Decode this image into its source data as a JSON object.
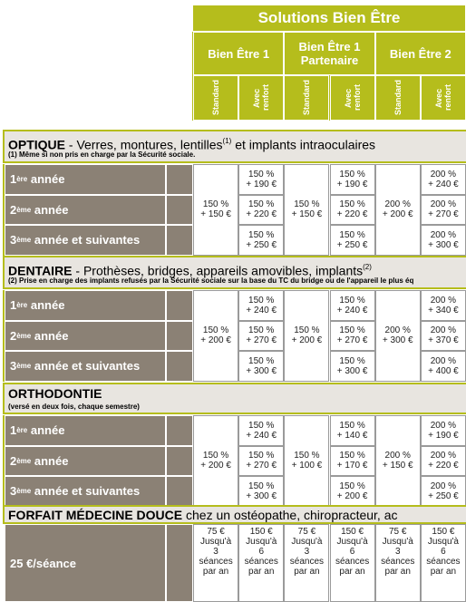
{
  "header": {
    "title": "Solutions Bien Être",
    "groups": [
      {
        "name": "Bien Être 1",
        "subs": [
          "Standard",
          "Avec renfort"
        ]
      },
      {
        "name": "Bien Être 1 Partenaire",
        "subs": [
          "Standard",
          "Avec renfort"
        ]
      },
      {
        "name": "Bien Être 2",
        "subs": [
          "Standard",
          "Avec renfort"
        ]
      }
    ]
  },
  "sections": [
    {
      "title": "OPTIQUE",
      "title_rest": " - Verres, montures, lentilles",
      "title_sup": "(1)",
      "title_end": " et implants intraoculaires",
      "note": "(1) Même si non pris en charge par la Sécurité sociale.",
      "rows": [
        {
          "num": "1",
          "sup": "ère",
          "text": " année"
        },
        {
          "num": "2",
          "sup": "ème",
          "text": " année"
        },
        {
          "num": "3",
          "sup": "ème",
          "text": " année et suivantes"
        }
      ],
      "standard": [
        [
          "150 %",
          "+ 150 €"
        ],
        [
          "150 %",
          "+ 150 €"
        ],
        [
          "200 %",
          "+ 200 €"
        ]
      ],
      "renfort": [
        [
          [
            "150 %",
            "+ 190 €"
          ],
          [
            "150 %",
            "+ 190 €"
          ],
          [
            "200 %",
            "+ 240 €"
          ]
        ],
        [
          [
            "150 %",
            "+ 220 €"
          ],
          [
            "150 %",
            "+ 220 €"
          ],
          [
            "200 %",
            "+ 270 €"
          ]
        ],
        [
          [
            "150 %",
            "+ 250 €"
          ],
          [
            "150 %",
            "+ 250 €"
          ],
          [
            "200 %",
            "+ 300 €"
          ]
        ]
      ]
    },
    {
      "title": "DENTAIRE",
      "title_rest": " - Prothèses, bridges, appareils amovibles, implants",
      "title_sup": "(2)",
      "title_end": "",
      "note": "(2) Prise en charge des implants refusés par la Sécurité sociale sur la base du TC du bridge ou de l'appareil le plus éq",
      "rows": [
        {
          "num": "1",
          "sup": "ère",
          "text": " année"
        },
        {
          "num": "2",
          "sup": "ème",
          "text": " année"
        },
        {
          "num": "3",
          "sup": "ème",
          "text": " année et suivantes"
        }
      ],
      "standard": [
        [
          "150 %",
          "+ 200 €"
        ],
        [
          "150 %",
          "+ 200 €"
        ],
        [
          "200 %",
          "+ 300 €"
        ]
      ],
      "renfort": [
        [
          [
            "150 %",
            "+ 240 €"
          ],
          [
            "150 %",
            "+ 240 €"
          ],
          [
            "200 %",
            "+ 340 €"
          ]
        ],
        [
          [
            "150 %",
            "+ 270 €"
          ],
          [
            "150 %",
            "+ 270 €"
          ],
          [
            "200 %",
            "+ 370 €"
          ]
        ],
        [
          [
            "150 %",
            "+ 300 €"
          ],
          [
            "150 %",
            "+ 300 €"
          ],
          [
            "200 %",
            "+ 400 €"
          ]
        ]
      ]
    },
    {
      "title": "ORTHODONTIE",
      "title_rest": "",
      "title_sup": "",
      "title_end": "",
      "note": "(versé en deux fois, chaque semestre)",
      "rows": [
        {
          "num": "1",
          "sup": "ère",
          "text": " année"
        },
        {
          "num": "2",
          "sup": "ème",
          "text": " année"
        },
        {
          "num": "3",
          "sup": "ème",
          "text": " année et suivantes"
        }
      ],
      "standard": [
        [
          "150 %",
          "+ 200 €"
        ],
        [
          "150 %",
          "+ 100 €"
        ],
        [
          "200 %",
          "+ 150 €"
        ]
      ],
      "renfort": [
        [
          [
            "150 %",
            "+ 240 €"
          ],
          [
            "150 %",
            "+ 140 €"
          ],
          [
            "200 %",
            "+ 190 €"
          ]
        ],
        [
          [
            "150 %",
            "+ 270 €"
          ],
          [
            "150 %",
            "+ 170 €"
          ],
          [
            "200 %",
            "+ 220 €"
          ]
        ],
        [
          [
            "150 %",
            "+ 300 €"
          ],
          [
            "150 %",
            "+ 200 €"
          ],
          [
            "200 %",
            "+ 250 €"
          ]
        ]
      ]
    }
  ],
  "forfait": {
    "title": "FORFAIT MÉDECINE DOUCE",
    "title_rest": " chez un ostéopathe, chiropracteur, ac",
    "label": "25 €/séance",
    "cells": [
      [
        "75 €",
        "Jusqu'à",
        "3",
        "séances",
        "par an"
      ],
      [
        "150 €",
        "Jusqu'à",
        "6",
        "séances",
        "par an"
      ],
      [
        "75 €",
        "Jusqu'à",
        "3",
        "séances",
        "par an"
      ],
      [
        "150 €",
        "Jusqu'à",
        "6",
        "séances",
        "par an"
      ],
      [
        "75 €",
        "Jusqu'à",
        "3",
        "séances",
        "par an"
      ],
      [
        "150 €",
        "Jusqu'à",
        "6",
        "séances",
        "par an"
      ]
    ]
  }
}
